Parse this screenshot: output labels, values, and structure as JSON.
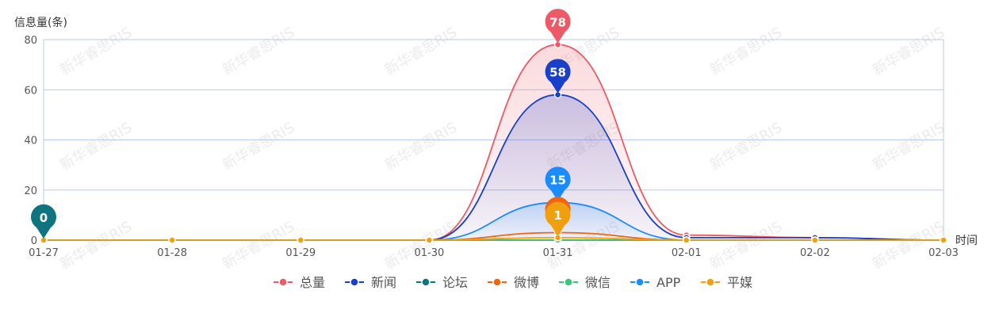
{
  "chart_data": {
    "type": "line",
    "ylabel": "信息量(条)",
    "xlabel": "时间",
    "ylim": [
      0,
      80
    ],
    "yticks": [
      0,
      20,
      40,
      60,
      80
    ],
    "categories": [
      "01-27",
      "01-28",
      "01-29",
      "01-30",
      "01-31",
      "02-01",
      "02-02",
      "02-03"
    ],
    "series": [
      {
        "name": "总量",
        "color": "#ec5a67",
        "values": [
          0,
          0,
          0,
          0,
          78,
          2,
          1,
          0
        ],
        "fill": true
      },
      {
        "name": "新闻",
        "color": "#1a3fc9",
        "values": [
          0,
          0,
          0,
          0,
          58,
          1,
          1,
          0
        ],
        "fill": true
      },
      {
        "name": "论坛",
        "color": "#0f7480",
        "values": [
          0,
          0,
          0,
          0,
          0,
          0,
          0,
          0
        ],
        "fill": false
      },
      {
        "name": "微博",
        "color": "#f0650f",
        "values": [
          0,
          0,
          0,
          0,
          3,
          0,
          0,
          0
        ],
        "fill": false
      },
      {
        "name": "微信",
        "color": "#3cc47a",
        "values": [
          0,
          0,
          0,
          0,
          0,
          0,
          0,
          0
        ],
        "fill": false
      },
      {
        "name": "APP",
        "color": "#1a8cff",
        "values": [
          0,
          0,
          0,
          0,
          15,
          0,
          0,
          0
        ],
        "fill": true
      },
      {
        "name": "平媒",
        "color": "#f0a00f",
        "values": [
          0,
          0,
          0,
          0,
          1,
          0,
          0,
          0
        ],
        "fill": false
      }
    ],
    "markers": [
      {
        "series": "总量",
        "category": "01-31",
        "value": 78,
        "label": "78",
        "color": "#ec5a67"
      },
      {
        "series": "新闻",
        "category": "01-31",
        "value": 58,
        "label": "58",
        "color": "#1a3fc9"
      },
      {
        "series": "APP",
        "category": "01-31",
        "value": 15,
        "label": "15",
        "color": "#1a8cff"
      },
      {
        "series": "微博",
        "category": "01-31",
        "value": 3,
        "label": "",
        "color": "#f0650f"
      },
      {
        "series": "平媒",
        "category": "01-31",
        "value": 1,
        "label": "1",
        "color": "#f0a00f"
      },
      {
        "series": "论坛",
        "category": "01-27",
        "value": 0,
        "label": "0",
        "color": "#0f7480"
      }
    ],
    "grid": true,
    "legend_position": "bottom"
  },
  "watermark": "新华睿思RIS"
}
